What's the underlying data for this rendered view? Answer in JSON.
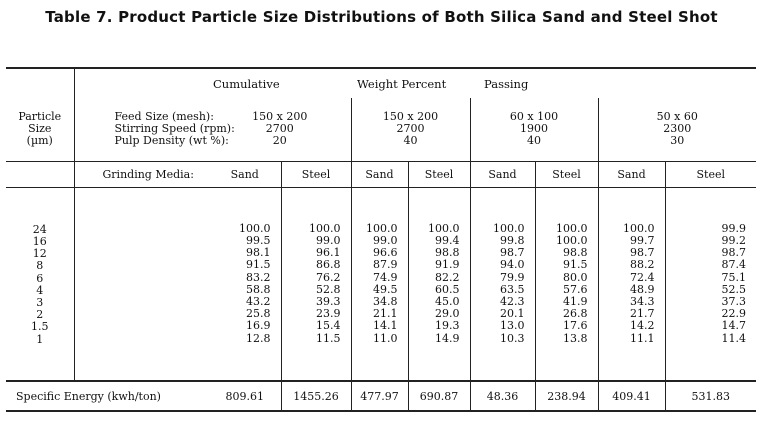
{
  "title": "Table 7. Product Particle Size Distributions of Both Silica Sand and Steel Shot",
  "header": {
    "cumulative": "Cumulative",
    "weight_percent": "Weight Percent",
    "passing": "Passing",
    "particle_size": [
      "Particle",
      "Size",
      "(µm)"
    ],
    "params": [
      "Feed Size (mesh):",
      "Stirring Speed (rpm):",
      "Pulp Density (wt %):"
    ],
    "grinding_media": "Grinding Media:"
  },
  "conditions": [
    {
      "feed": "150 x 200",
      "speed": "2700",
      "density": "20"
    },
    {
      "feed": "150 x 200",
      "speed": "2700",
      "density": "40"
    },
    {
      "feed": "60 x 100",
      "speed": "1900",
      "density": "40"
    },
    {
      "feed": "50 x 60",
      "speed": "2300",
      "density": "30"
    }
  ],
  "media": [
    "Sand",
    "Steel",
    "Sand",
    "Steel",
    "Sand",
    "Steel",
    "Sand",
    "Steel"
  ],
  "sizes": [
    "24",
    "16",
    "12",
    "8",
    "6",
    "4",
    "3",
    "2",
    "1.5",
    "1"
  ],
  "columns": [
    [
      "100.0",
      "99.5",
      "98.1",
      "91.5",
      "83.2",
      "58.8",
      "43.2",
      "25.8",
      "16.9",
      "12.8"
    ],
    [
      "100.0",
      "99.0",
      "96.1",
      "86.8",
      "76.2",
      "52.8",
      "39.3",
      "23.9",
      "15.4",
      "11.5"
    ],
    [
      "100.0",
      "99.0",
      "96.6",
      "87.9",
      "74.9",
      "49.5",
      "34.8",
      "21.1",
      "14.1",
      "11.0"
    ],
    [
      "100.0",
      "99.4",
      "98.8",
      "91.9",
      "82.2",
      "60.5",
      "45.0",
      "29.0",
      "19.3",
      "14.9"
    ],
    [
      "100.0",
      "99.8",
      "98.7",
      "94.0",
      "79.9",
      "63.5",
      "42.3",
      "20.1",
      "13.0",
      "10.3"
    ],
    [
      "100.0",
      "100.0",
      "98.8",
      "91.5",
      "80.0",
      "57.6",
      "41.9",
      "26.8",
      "17.6",
      "13.8"
    ],
    [
      "100.0",
      "99.7",
      "98.7",
      "88.2",
      "72.4",
      "48.9",
      "34.3",
      "21.7",
      "14.2",
      "11.1"
    ],
    [
      "99.9",
      "99.2",
      "98.7",
      "87.4",
      "75.1",
      "52.5",
      "37.3",
      "22.9",
      "14.7",
      "11.4"
    ]
  ],
  "energy_label": "Specific Energy (kwh/ton)",
  "energy": [
    "809.61",
    "1455.26",
    "477.97",
    "690.87",
    "48.36",
    "238.94",
    "409.41",
    "531.83"
  ]
}
